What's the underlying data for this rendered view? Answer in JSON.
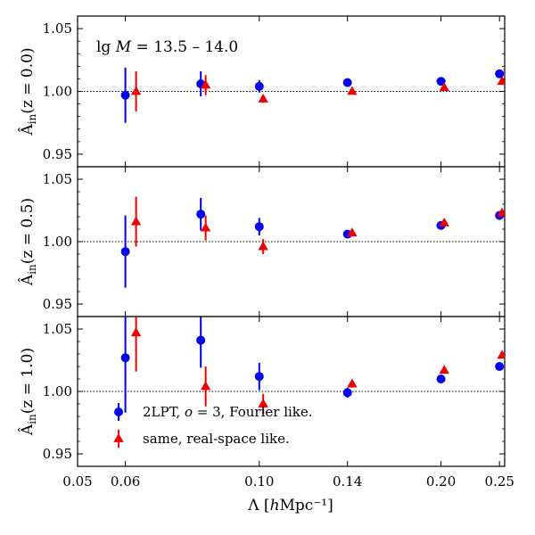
{
  "chart_data": {
    "type": "scatter",
    "title": "",
    "annotation": "lg M = 13.5 – 14.0",
    "xlabel": "Λ [hMpc⁻¹]",
    "x_scale": "log",
    "xlim": [
      0.05,
      0.255
    ],
    "x_ticks": [
      0.05,
      0.06,
      0.1,
      0.14,
      0.2,
      0.25
    ],
    "x_tick_labels": [
      "0.05",
      "0.06",
      "0.10",
      "0.14",
      "0.20",
      "0.25"
    ],
    "reference_line": 1.0,
    "colors": {
      "fourier": "#0000ee",
      "real": "#ee0000"
    },
    "legend": {
      "placement": "lower-left of bottom panel",
      "entries": [
        {
          "key": "fourier",
          "label": "2LPT, o = 3, Fourier like."
        },
        {
          "key": "real",
          "label": "same, real-space like."
        }
      ]
    },
    "panels": [
      {
        "ylabel": "Â_in(z = 0.0)",
        "ylim": [
          0.94,
          1.06
        ],
        "y_ticks": [
          0.95,
          1.0,
          1.05
        ],
        "y_tick_labels": [
          "0.95",
          "1.00",
          "1.05"
        ],
        "series": [
          {
            "key": "fourier",
            "marker": "circle",
            "x": [
              0.06,
              0.08,
              0.1,
              0.14,
              0.2,
              0.25
            ],
            "y": [
              0.997,
              1.006,
              1.004,
              1.007,
              1.008,
              1.014
            ],
            "err": [
              0.022,
              0.01,
              0.005,
              0.002,
              0.002,
              0.002
            ]
          },
          {
            "key": "real",
            "marker": "triangle",
            "x": [
              0.0625,
              0.0815,
              0.1015,
              0.1425,
              0.2025,
              0.2525
            ],
            "y": [
              1.0,
              1.005,
              0.994,
              1.0,
              1.003,
              1.008
            ],
            "err": [
              0.016,
              0.008,
              0.003,
              0.002,
              0.002,
              0.002
            ]
          }
        ]
      },
      {
        "ylabel": "Â_in(z = 0.5)",
        "ylim": [
          0.94,
          1.06
        ],
        "y_ticks": [
          0.95,
          1.0,
          1.05
        ],
        "y_tick_labels": [
          "0.95",
          "1.00",
          "1.05"
        ],
        "series": [
          {
            "key": "fourier",
            "marker": "circle",
            "x": [
              0.06,
              0.08,
              0.1,
              0.14,
              0.2,
              0.25
            ],
            "y": [
              0.992,
              1.022,
              1.012,
              1.006,
              1.013,
              1.021
            ],
            "err": [
              0.029,
              0.013,
              0.007,
              0.002,
              0.002,
              0.002
            ]
          },
          {
            "key": "real",
            "marker": "triangle",
            "x": [
              0.0625,
              0.0815,
              0.1015,
              0.1425,
              0.2025,
              0.2525
            ],
            "y": [
              1.016,
              1.011,
              0.996,
              1.007,
              1.015,
              1.023
            ],
            "err": [
              0.02,
              0.01,
              0.006,
              0.002,
              0.002,
              0.002
            ]
          }
        ]
      },
      {
        "ylabel": "Â_in(z = 1.0)",
        "ylim": [
          0.94,
          1.06
        ],
        "y_ticks": [
          0.95,
          1.0,
          1.05
        ],
        "y_tick_labels": [
          "0.95",
          "1.00",
          "1.05"
        ],
        "series": [
          {
            "key": "fourier",
            "marker": "circle",
            "x": [
              0.06,
              0.08,
              0.1,
              0.14,
              0.2,
              0.25
            ],
            "y": [
              1.027,
              1.041,
              1.012,
              0.999,
              1.01,
              1.02
            ],
            "err": [
              0.044,
              0.022,
              0.011,
              0.004,
              0.002,
              0.002
            ]
          },
          {
            "key": "real",
            "marker": "triangle",
            "x": [
              0.0625,
              0.0815,
              0.1015,
              0.1425,
              0.2025,
              0.2525
            ],
            "y": [
              1.047,
              1.004,
              0.99,
              1.006,
              1.017,
              1.029
            ],
            "err": [
              0.031,
              0.016,
              0.008,
              0.003,
              0.002,
              0.002
            ]
          }
        ]
      }
    ]
  }
}
